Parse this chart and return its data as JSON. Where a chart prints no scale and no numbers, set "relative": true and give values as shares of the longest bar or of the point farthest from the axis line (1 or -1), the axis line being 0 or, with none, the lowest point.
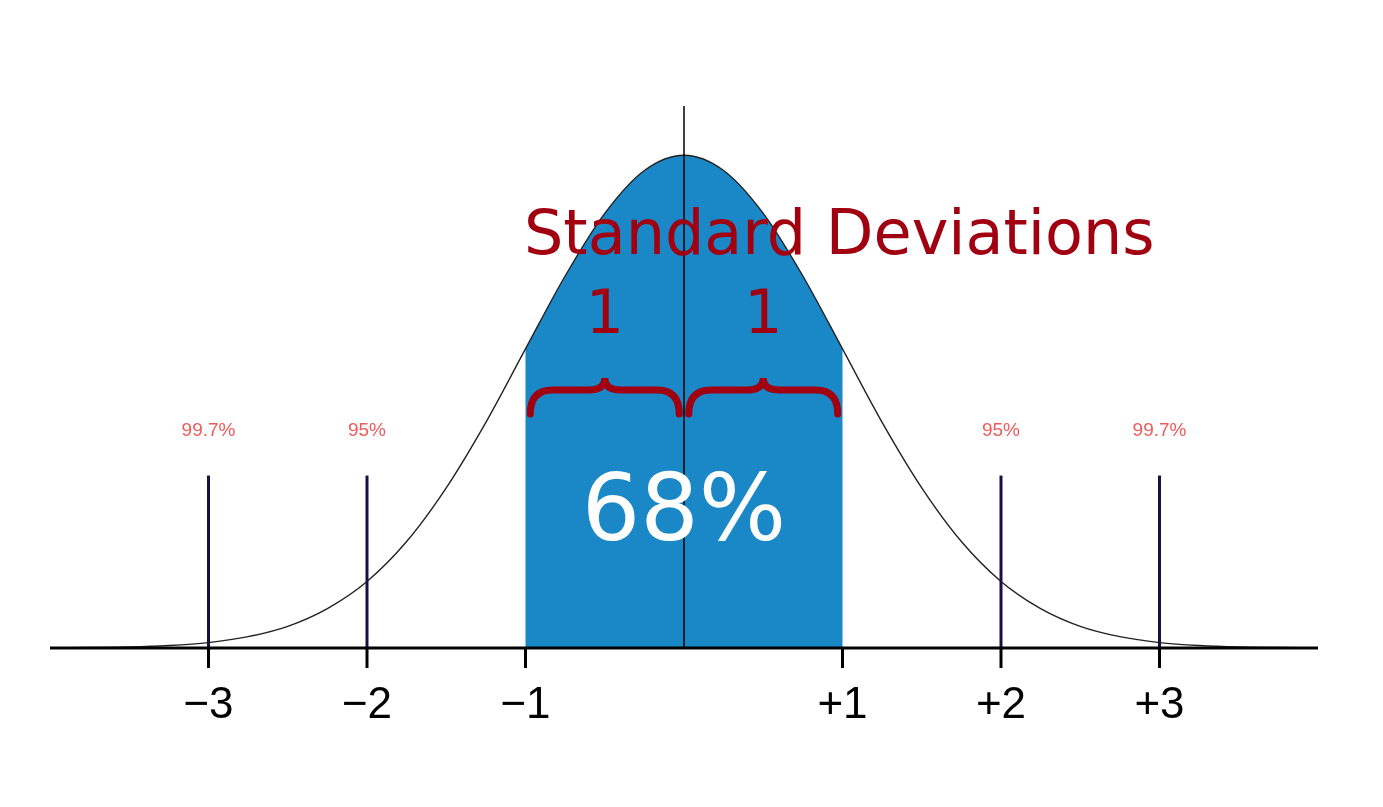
{
  "chart_data": {
    "type": "line",
    "relative": true,
    "xlim": [
      -4,
      4
    ],
    "xticks": [
      {
        "value": -3,
        "label": "−3"
      },
      {
        "value": -2,
        "label": "−2"
      },
      {
        "value": -1,
        "label": "−1"
      },
      {
        "value": 1,
        "label": "+1"
      },
      {
        "value": 2,
        "label": "+2"
      },
      {
        "value": 3,
        "label": "+3"
      }
    ],
    "series": [
      {
        "type": "area",
        "color": "#1a87c7",
        "x": [
          -1,
          -0.75,
          -0.5,
          -0.25,
          0,
          0.25,
          0.5,
          0.75,
          1
        ],
        "values": [
          0.607,
          0.755,
          0.882,
          0.969,
          1,
          0.969,
          0.882,
          0.755,
          0.607
        ]
      },
      {
        "color": "#222222",
        "x": [
          -4,
          -3.75,
          -3.5,
          -3.25,
          -3,
          -2.75,
          -2.5,
          -2.25,
          -2,
          -1.75,
          -1.5,
          -1.25,
          -1,
          -0.75,
          -0.5,
          -0.25,
          0,
          0.25,
          0.5,
          0.75,
          1,
          1.25,
          1.5,
          1.75,
          2,
          2.25,
          2.5,
          2.75,
          3,
          3.25,
          3.5,
          3.75,
          4
        ],
        "values": [
          0,
          0.001,
          0.002,
          0.005,
          0.011,
          0.023,
          0.044,
          0.08,
          0.135,
          0.216,
          0.325,
          0.458,
          0.607,
          0.755,
          0.882,
          0.969,
          1,
          0.969,
          0.882,
          0.755,
          0.607,
          0.458,
          0.325,
          0.216,
          0.135,
          0.08,
          0.044,
          0.023,
          0.011,
          0.005,
          0.002,
          0.001,
          0
        ]
      }
    ],
    "ref_lines": [
      {
        "axis": "x",
        "value": 0,
        "color": "#000000"
      },
      {
        "axis": "x",
        "value": -3,
        "color": "#1a1040"
      },
      {
        "axis": "x",
        "value": -2,
        "color": "#1a1040"
      },
      {
        "axis": "x",
        "value": 2,
        "color": "#1a1040"
      },
      {
        "axis": "x",
        "value": 3,
        "color": "#1a1040"
      }
    ],
    "annotations": [
      "Standard Deviations",
      "1",
      "1",
      "68%",
      "99.7%",
      "95%",
      "95%",
      "99.7%"
    ],
    "marker": "none",
    "line_style": "solid"
  }
}
